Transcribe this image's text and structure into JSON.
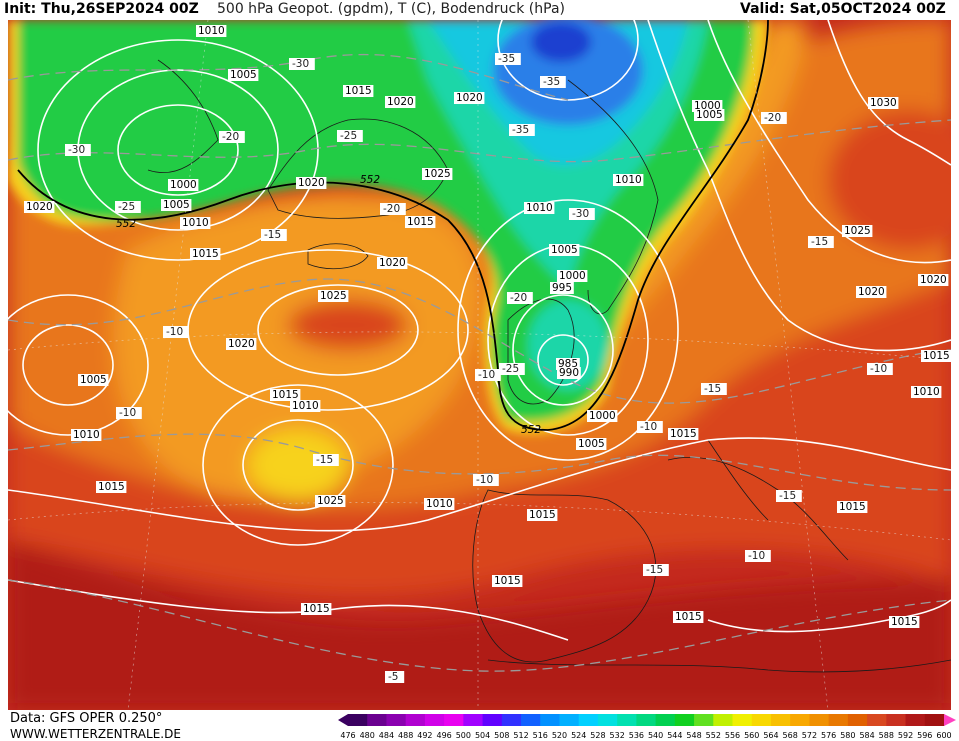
{
  "header": {
    "init": "Init: Thu,26SEP2024 00Z",
    "title": "500 hPa Geopot. (gpdm), T (C), Bodendruck (hPa)",
    "valid": "Valid: Sat,05OCT2024 00Z"
  },
  "footer": {
    "data_source": "Data: GFS OPER 0.250°",
    "website": "WWW.WETTERZENTRALE.DE"
  },
  "colorbar": {
    "ticks": [
      "476",
      "480",
      "484",
      "488",
      "492",
      "496",
      "500",
      "504",
      "508",
      "512",
      "516",
      "520",
      "524",
      "528",
      "532",
      "536",
      "540",
      "544",
      "548",
      "552",
      "556",
      "560",
      "564",
      "568",
      "572",
      "576",
      "580",
      "584",
      "588",
      "592",
      "596",
      "600"
    ],
    "colors": [
      "#3a0060",
      "#6a0090",
      "#8a00b0",
      "#b000d0",
      "#d000e8",
      "#e800f0",
      "#a000ff",
      "#6000ff",
      "#3030ff",
      "#1060ff",
      "#0090ff",
      "#00b0ff",
      "#00d0ff",
      "#00e0e0",
      "#00e0b0",
      "#00d880",
      "#00d050",
      "#10d020",
      "#60e020",
      "#c0f000",
      "#f0f000",
      "#f8d800",
      "#f8c000",
      "#f8a800",
      "#f09000",
      "#e87800",
      "#e06000",
      "#d84820",
      "#c83020",
      "#b01818",
      "#a01010",
      "#ff40c0"
    ]
  },
  "map": {
    "colors": {
      "bg_red": "#c42a1e",
      "deep_red": "#b01d18",
      "red_orange": "#d9441f",
      "orange": "#e8761f",
      "light_orange": "#f39a22",
      "yellow": "#f7d21a",
      "green": "#22cc44",
      "teal": "#1ed6a8",
      "cyan": "#18c8e0",
      "blue": "#2a7fe8",
      "dark_blue": "#1a3fd0"
    },
    "isobar_labels": [
      {
        "text": "1010",
        "id": "a"
      },
      {
        "text": "1005",
        "id": "b"
      },
      {
        "text": "1015",
        "id": "c"
      },
      {
        "text": "1020",
        "id": "d"
      },
      {
        "text": "1020",
        "id": "e"
      },
      {
        "text": "1000",
        "id": "f"
      },
      {
        "text": "1005",
        "id": "g"
      },
      {
        "text": "1030",
        "id": "h"
      },
      {
        "text": "1000",
        "id": "i"
      },
      {
        "text": "1005",
        "id": "j"
      },
      {
        "text": "1010",
        "id": "k"
      },
      {
        "text": "1020",
        "id": "l"
      },
      {
        "text": "1010",
        "id": "m"
      },
      {
        "text": "1015",
        "id": "n"
      },
      {
        "text": "1025",
        "id": "o"
      },
      {
        "text": "1020",
        "id": "p"
      },
      {
        "text": "1010",
        "id": "q"
      },
      {
        "text": "1005",
        "id": "r"
      },
      {
        "text": "1015",
        "id": "s"
      },
      {
        "text": "1025",
        "id": "t"
      },
      {
        "text": "1020",
        "id": "u"
      },
      {
        "text": "1000",
        "id": "v"
      },
      {
        "text": "995",
        "id": "w"
      },
      {
        "text": "985",
        "id": "x"
      },
      {
        "text": "990",
        "id": "y"
      },
      {
        "text": "1000",
        "id": "z"
      },
      {
        "text": "1005",
        "id": "aa"
      },
      {
        "text": "1005",
        "id": "ab"
      },
      {
        "text": "1010",
        "id": "ac"
      },
      {
        "text": "1015",
        "id": "ad"
      },
      {
        "text": "1020",
        "id": "ae"
      },
      {
        "text": "1015",
        "id": "af"
      },
      {
        "text": "1010",
        "id": "ag"
      },
      {
        "text": "1015",
        "id": "ah"
      },
      {
        "text": "1015",
        "id": "ai"
      },
      {
        "text": "1015",
        "id": "aj"
      },
      {
        "text": "1015",
        "id": "ak"
      },
      {
        "text": "1010",
        "id": "al"
      },
      {
        "text": "1015",
        "id": "am"
      },
      {
        "text": "1015",
        "id": "an"
      },
      {
        "text": "1010",
        "id": "ao"
      },
      {
        "text": "1020",
        "id": "ap"
      },
      {
        "text": "1025",
        "id": "aq"
      },
      {
        "text": "1020",
        "id": "ar"
      },
      {
        "text": "1015",
        "id": "as"
      },
      {
        "text": "1015",
        "id": "at"
      },
      {
        "text": "1025",
        "id": "au"
      }
    ],
    "temp_labels": [
      {
        "text": "-30"
      },
      {
        "text": "-30"
      },
      {
        "text": "-20"
      },
      {
        "text": "-25"
      },
      {
        "text": "-25"
      },
      {
        "text": "-35"
      },
      {
        "text": "-35"
      },
      {
        "text": "-35"
      },
      {
        "text": "-20"
      },
      {
        "text": "-20"
      },
      {
        "text": "-15"
      },
      {
        "text": "-15"
      },
      {
        "text": "-30"
      },
      {
        "text": "-20"
      },
      {
        "text": "-10"
      },
      {
        "text": "-10"
      },
      {
        "text": "-25"
      },
      {
        "text": "-15"
      },
      {
        "text": "-15"
      },
      {
        "text": "-10"
      },
      {
        "text": "-10"
      },
      {
        "text": "-15"
      },
      {
        "text": "-15"
      },
      {
        "text": "-10"
      },
      {
        "text": "-10"
      },
      {
        "text": "-10"
      },
      {
        "text": "-5"
      }
    ],
    "geopot_labels": [
      {
        "text": "552"
      },
      {
        "text": "552"
      },
      {
        "text": "552"
      }
    ]
  }
}
